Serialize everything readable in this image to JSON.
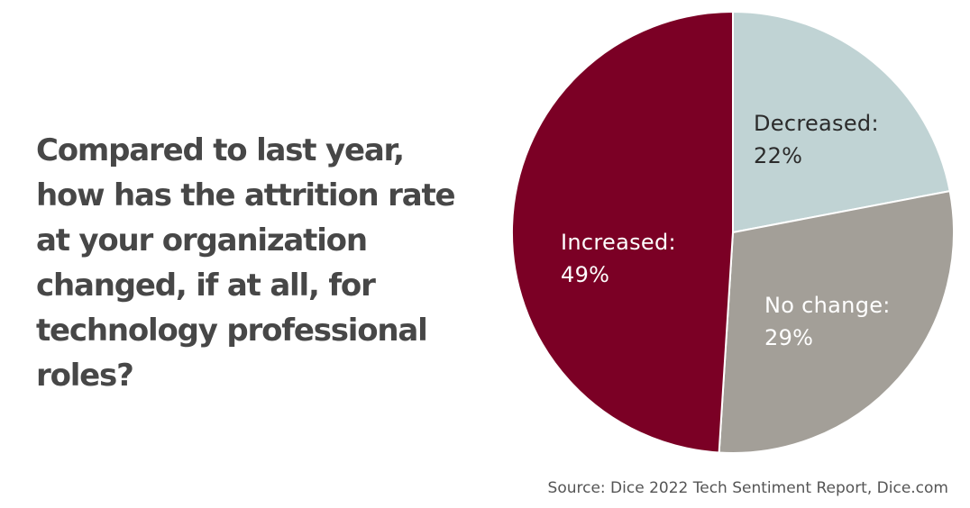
{
  "question": "Compared to last year,\nhow has the attrition rate\nat your organization\nchanged, if at all, for\ntechnology professional\nroles?",
  "source": "Source: Dice 2022 Tech Sentiment Report, Dice.com",
  "chart_data": {
    "type": "pie",
    "title": "Compared to last year, how has the attrition rate at your organization changed, if at all, for technology professional roles?",
    "start_angle_deg": 0,
    "direction": "clockwise",
    "slices": [
      {
        "label": "Decreased:",
        "value": 22,
        "display": "22%",
        "color": "#c0d3d4",
        "label_color": "#2b2b2b"
      },
      {
        "label": "No change:",
        "value": 29,
        "display": "29%",
        "color": "#a39f98",
        "label_color": "#ffffff"
      },
      {
        "label": "Increased:",
        "value": 49,
        "display": "49%",
        "color": "#7b0025",
        "label_color": "#ffffff"
      }
    ]
  }
}
